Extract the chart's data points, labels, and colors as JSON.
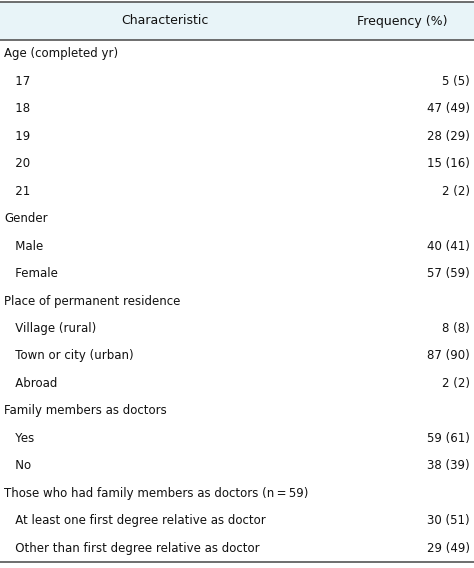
{
  "header_col1": "Characteristic",
  "header_col2": "Frequency (%)",
  "header_bg": "#e8f4f8",
  "rows": [
    {
      "label": "Age (completed yr)",
      "value": "",
      "indent": 0
    },
    {
      "label": "   17",
      "value": "5 (5)",
      "indent": 0
    },
    {
      "label": "   18",
      "value": "47 (49)",
      "indent": 0
    },
    {
      "label": "   19",
      "value": "28 (29)",
      "indent": 0
    },
    {
      "label": "   20",
      "value": "15 (16)",
      "indent": 0
    },
    {
      "label": "   21",
      "value": "2 (2)",
      "indent": 0
    },
    {
      "label": "Gender",
      "value": "",
      "indent": 0
    },
    {
      "label": "   Male",
      "value": "40 (41)",
      "indent": 0
    },
    {
      "label": "   Female",
      "value": "57 (59)",
      "indent": 0
    },
    {
      "label": "Place of permanent residence",
      "value": "",
      "indent": 0
    },
    {
      "label": "   Village (rural)",
      "value": "8 (8)",
      "indent": 0
    },
    {
      "label": "   Town or city (urban)",
      "value": "87 (90)",
      "indent": 0
    },
    {
      "label": "   Abroad",
      "value": "2 (2)",
      "indent": 0
    },
    {
      "label": "Family members as doctors",
      "value": "",
      "indent": 0
    },
    {
      "label": "   Yes",
      "value": "59 (61)",
      "indent": 0
    },
    {
      "label": "   No",
      "value": "38 (39)",
      "indent": 0
    },
    {
      "label": "Those who had family members as doctors (n = 59)",
      "value": "",
      "indent": 0
    },
    {
      "label": "   At least one first degree relative as doctor",
      "value": "30 (51)",
      "indent": 0
    },
    {
      "label": "   Other than first degree relative as doctor",
      "value": "29 (49)",
      "indent": 0
    }
  ],
  "bg_color": "#ffffff",
  "header_line_color": "#555555",
  "text_color": "#111111",
  "font_size": 8.5,
  "header_font_size": 9.0
}
